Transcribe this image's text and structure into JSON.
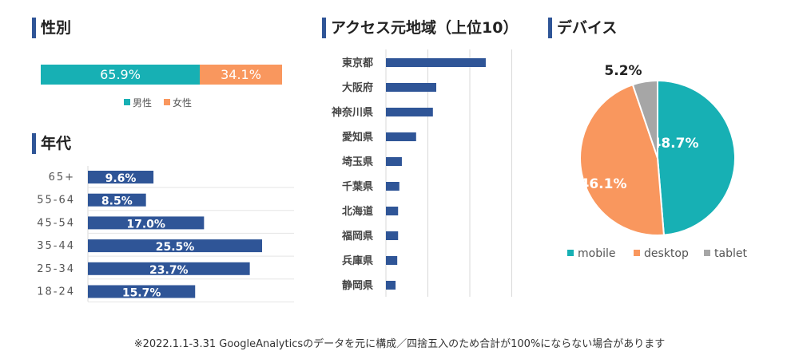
{
  "colors": {
    "bar": "#2f5597",
    "mobile": "#17b0b4",
    "desktop": "#f9975e",
    "tablet": "#a6a6a6",
    "grid": "#d9d9d9"
  },
  "chart_data": [
    {
      "type": "bar",
      "title": "性別",
      "stacked": true,
      "categories": [
        "男性",
        "女性"
      ],
      "values": [
        65.9,
        34.1
      ],
      "labels": [
        "65.9%",
        "34.1%"
      ],
      "legend": "bottom"
    },
    {
      "type": "bar",
      "title": "年代",
      "orientation": "horizontal",
      "categories": [
        "65+",
        "55-64",
        "45-54",
        "35-44",
        "25-34",
        "18-24"
      ],
      "values": [
        9.6,
        8.5,
        17.0,
        25.5,
        23.7,
        15.7
      ],
      "labels": [
        "9.6%",
        "8.5%",
        "17.0%",
        "25.5%",
        "23.7%",
        "15.7%"
      ]
    },
    {
      "type": "bar",
      "title": "アクセス元地域（上位10）",
      "orientation": "horizontal",
      "categories": [
        "東京都",
        "大阪府",
        "神奈川県",
        "愛知県",
        "埼玉県",
        "千葉県",
        "北海道",
        "福岡県",
        "兵庫県",
        "静岡県"
      ],
      "values": [
        23.8,
        12.0,
        11.2,
        7.2,
        3.8,
        3.2,
        2.9,
        2.9,
        2.7,
        2.3
      ],
      "xlim": [
        0,
        30
      ],
      "grid": true
    },
    {
      "type": "pie",
      "title": "デバイス",
      "categories": [
        "mobile",
        "desktop",
        "tablet"
      ],
      "values": [
        48.7,
        46.1,
        5.2
      ],
      "labels": [
        "48.7%",
        "46.1%",
        "5.2%"
      ],
      "legend": "bottom"
    }
  ],
  "footnote": "※2022.1.1-3.31 GoogleAnalyticsのデータを元に構成／四捨五入のため合計が100%にならない場合があります"
}
